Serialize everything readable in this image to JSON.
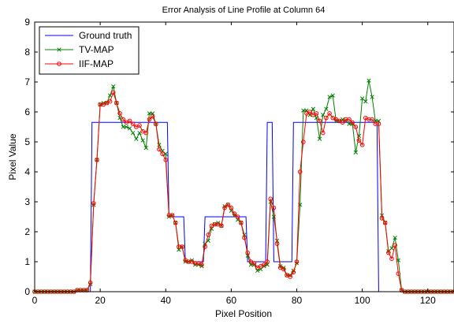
{
  "chart_data": {
    "type": "line",
    "title": "Error Analysis of Line Profile at Column 64",
    "xlabel": "Pixel Position",
    "ylabel": "Pixel Value",
    "xlim": [
      0,
      128
    ],
    "ylim": [
      0,
      9
    ],
    "xticks": [
      "0",
      "20",
      "40",
      "60",
      "80",
      "100",
      "120"
    ],
    "yticks": [
      "0",
      "1",
      "2",
      "3",
      "4",
      "5",
      "6",
      "7",
      "8",
      "9"
    ],
    "grid": false,
    "legend_position": "top-left",
    "series": [
      {
        "name": "Ground truth",
        "color": "#0000ff",
        "marker": "none",
        "x": [
          0,
          17,
          17.5,
          40.5,
          41,
          45.5,
          46,
          51.5,
          52,
          64.5,
          65,
          70.5,
          71,
          72.5,
          73,
          78.5,
          79,
          104.5,
          105,
          128
        ],
        "y": [
          0,
          0,
          5.65,
          5.65,
          2.5,
          2.5,
          1.0,
          1.0,
          2.5,
          2.5,
          1.0,
          1.0,
          5.65,
          5.65,
          1.0,
          1.0,
          5.65,
          5.65,
          0,
          0
        ]
      },
      {
        "name": "TV-MAP",
        "color": "#008000",
        "marker": "x",
        "x": [
          0,
          1,
          2,
          3,
          4,
          5,
          6,
          7,
          8,
          9,
          10,
          11,
          12,
          13,
          14,
          15,
          16,
          17,
          18,
          19,
          20,
          21,
          22,
          23,
          24,
          25,
          26,
          27,
          28,
          29,
          30,
          31,
          32,
          33,
          34,
          35,
          36,
          37,
          38,
          39,
          40,
          41,
          42,
          43,
          44,
          45,
          46,
          47,
          48,
          49,
          50,
          51,
          52,
          53,
          54,
          55,
          56,
          57,
          58,
          59,
          60,
          61,
          62,
          63,
          64,
          65,
          66,
          67,
          68,
          69,
          70,
          71,
          72,
          73,
          74,
          75,
          76,
          77,
          78,
          79,
          80,
          81,
          82,
          83,
          84,
          85,
          86,
          87,
          88,
          89,
          90,
          91,
          92,
          93,
          94,
          95,
          96,
          97,
          98,
          99,
          100,
          101,
          102,
          103,
          104,
          105,
          106,
          107,
          108,
          109,
          110,
          111,
          112,
          113,
          114,
          115,
          116,
          117,
          118,
          119,
          120,
          121,
          122,
          123,
          124,
          125,
          126,
          127,
          128
        ],
        "y": [
          0,
          0,
          0,
          0,
          0,
          0,
          0,
          0,
          0,
          0,
          0,
          0,
          0,
          0.05,
          0.05,
          0.05,
          0.05,
          0.25,
          2.9,
          4.4,
          6.25,
          6.3,
          6.3,
          6.55,
          6.85,
          6.3,
          5.8,
          5.5,
          5.5,
          5.45,
          5.3,
          5.1,
          5.3,
          5.05,
          4.8,
          5.95,
          5.95,
          5.6,
          4.9,
          4.7,
          4.6,
          2.5,
          2.55,
          2.3,
          1.4,
          1.5,
          1.0,
          1.0,
          1.05,
          0.9,
          0.9,
          0.85,
          1.6,
          1.7,
          2.1,
          2.25,
          2.3,
          2.2,
          2.85,
          2.9,
          2.7,
          2.55,
          2.4,
          2.3,
          1.9,
          1.2,
          0.9,
          0.9,
          0.7,
          0.75,
          0.85,
          0.9,
          3.0,
          2.5,
          1.7,
          0.85,
          0.8,
          0.55,
          0.55,
          0.7,
          0.95,
          2.9,
          6.05,
          6.05,
          5.9,
          6.1,
          5.8,
          5.1,
          5.9,
          6.1,
          6.5,
          6.55,
          5.7,
          5.7,
          5.75,
          5.7,
          5.6,
          5.6,
          4.65,
          5.2,
          6.45,
          6.35,
          7.05,
          6.5,
          5.7,
          5.7,
          2.55,
          2.3,
          1.35,
          1.45,
          1.8,
          1.05,
          0.05,
          0,
          0,
          0,
          0,
          0,
          0,
          0,
          0,
          0,
          0,
          0,
          0,
          0,
          0,
          0,
          0
        ]
      },
      {
        "name": "IIF-MAP",
        "color": "#ff0000",
        "marker": "o",
        "x": [
          0,
          1,
          2,
          3,
          4,
          5,
          6,
          7,
          8,
          9,
          10,
          11,
          12,
          13,
          14,
          15,
          16,
          17,
          18,
          19,
          20,
          21,
          22,
          23,
          24,
          25,
          26,
          27,
          28,
          29,
          30,
          31,
          32,
          33,
          34,
          35,
          36,
          37,
          38,
          39,
          40,
          41,
          42,
          43,
          44,
          45,
          46,
          47,
          48,
          49,
          50,
          51,
          52,
          53,
          54,
          55,
          56,
          57,
          58,
          59,
          60,
          61,
          62,
          63,
          64,
          65,
          66,
          67,
          68,
          69,
          70,
          71,
          72,
          73,
          74,
          75,
          76,
          77,
          78,
          79,
          80,
          81,
          82,
          83,
          84,
          85,
          86,
          87,
          88,
          89,
          90,
          91,
          92,
          93,
          94,
          95,
          96,
          97,
          98,
          99,
          100,
          101,
          102,
          103,
          104,
          105,
          106,
          107,
          108,
          109,
          110,
          111,
          112,
          113,
          114,
          115,
          116,
          117,
          118,
          119,
          120,
          121,
          122,
          123,
          124,
          125,
          126,
          127,
          128
        ],
        "y": [
          0,
          0,
          0,
          0,
          0,
          0,
          0,
          0,
          0,
          0,
          0,
          0,
          0,
          0.05,
          0.05,
          0.05,
          0.05,
          0.3,
          2.95,
          4.4,
          6.25,
          6.25,
          6.3,
          6.35,
          6.65,
          6.3,
          5.95,
          5.75,
          5.65,
          5.7,
          5.6,
          5.5,
          5.55,
          5.35,
          5.3,
          5.75,
          5.85,
          5.6,
          4.75,
          4.6,
          4.4,
          2.55,
          2.55,
          2.3,
          1.5,
          1.5,
          1.05,
          1.0,
          1.0,
          0.95,
          0.95,
          0.9,
          1.5,
          1.9,
          2.2,
          2.25,
          2.25,
          2.2,
          2.8,
          2.9,
          2.8,
          2.6,
          2.5,
          2.3,
          1.8,
          1.3,
          1.0,
          0.95,
          0.8,
          0.85,
          0.9,
          1.0,
          3.1,
          2.8,
          1.6,
          0.8,
          0.75,
          0.55,
          0.5,
          0.65,
          1.0,
          4.0,
          5.0,
          5.95,
          6.0,
          5.9,
          5.95,
          5.7,
          5.3,
          5.8,
          5.95,
          5.8,
          5.75,
          5.7,
          5.65,
          5.75,
          5.75,
          5.65,
          5.5,
          5.05,
          4.9,
          5.8,
          5.75,
          5.75,
          5.6,
          5.6,
          2.45,
          2.3,
          1.3,
          1.1,
          1.55,
          0.6,
          0.05,
          0,
          0,
          0,
          0,
          0,
          0,
          0,
          0,
          0,
          0,
          0,
          0,
          0,
          0,
          0,
          0
        ]
      }
    ]
  }
}
